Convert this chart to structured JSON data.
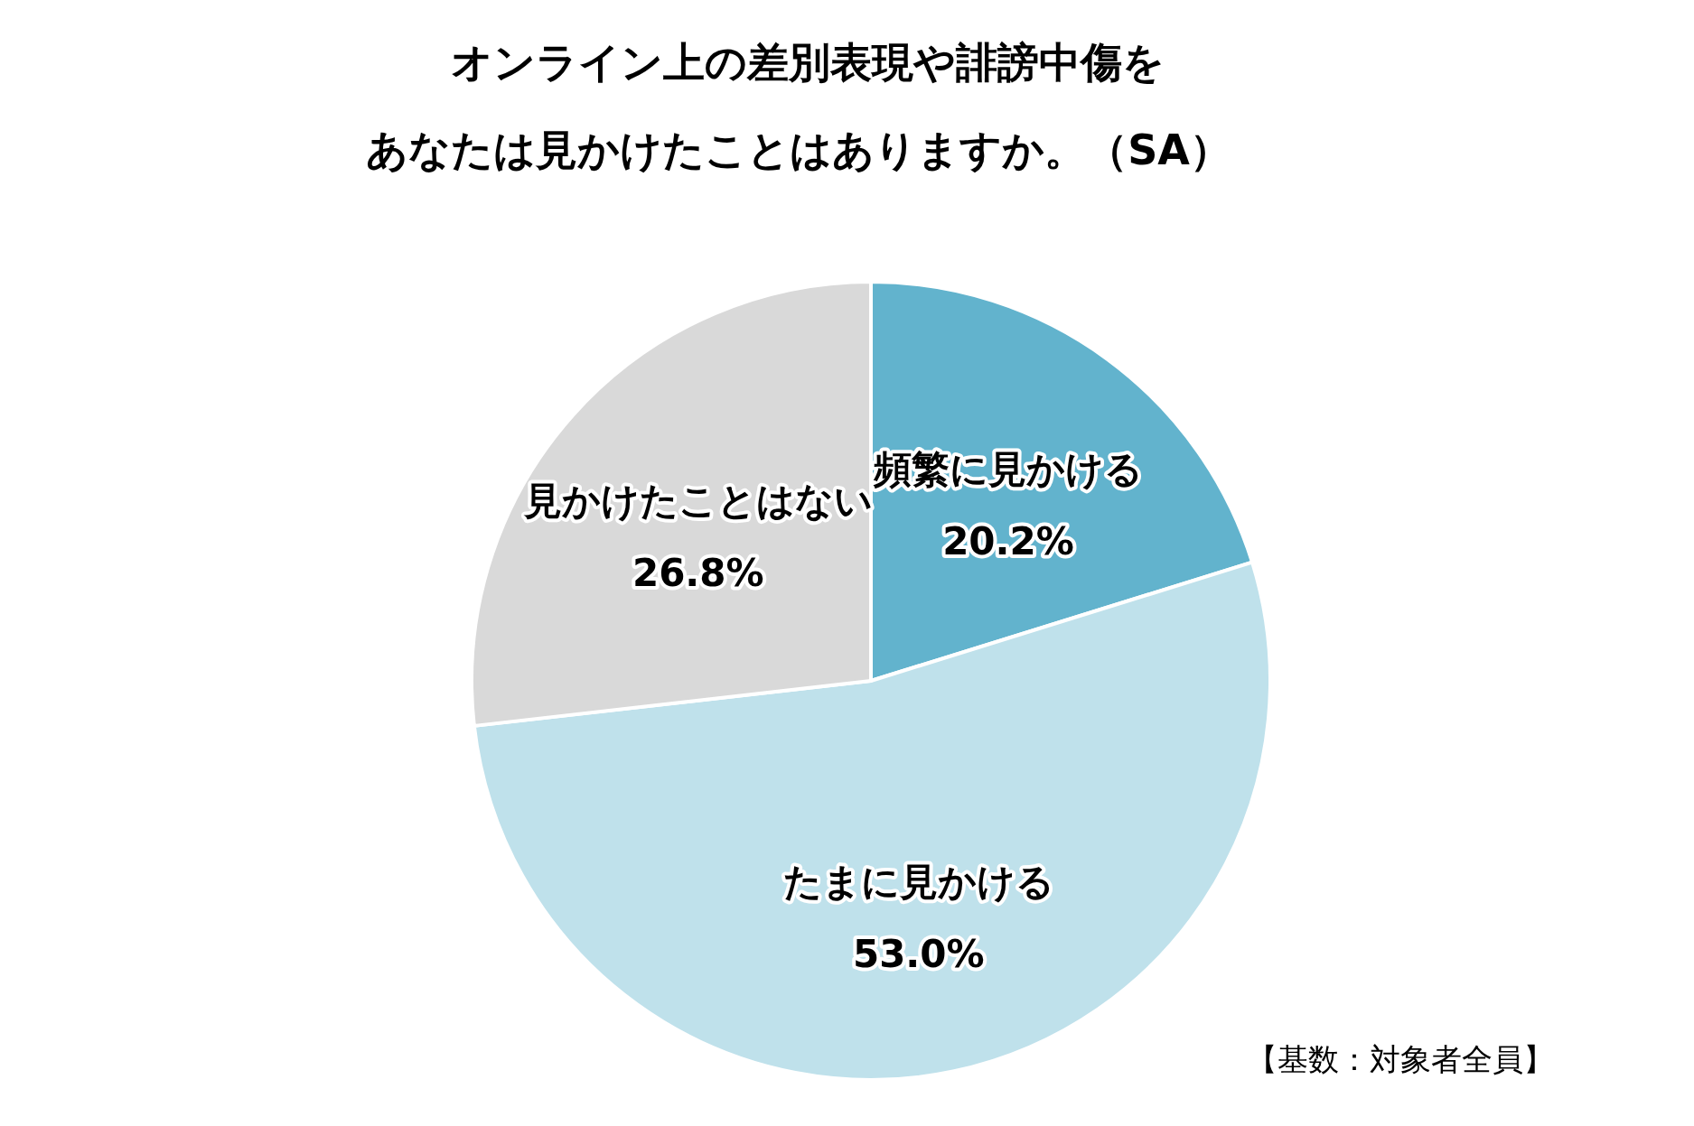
{
  "chart_data": {
    "type": "pie",
    "title": "オンライン上の差別表現や誹謗中傷を",
    "subtitle": "あなたは見かけたことはありますか。（SA）",
    "categories": [
      "頻繁に見かける",
      "たまに見かける",
      "見かけたことはない"
    ],
    "values": [
      20.2,
      53.0,
      26.8
    ],
    "value_labels": [
      "20.2%",
      "53.0%",
      "26.8%"
    ],
    "colors": [
      "#62b3cd",
      "#bfe1eb",
      "#d9d9d9"
    ],
    "annotations": [
      "【基数：対象者全員】"
    ]
  }
}
